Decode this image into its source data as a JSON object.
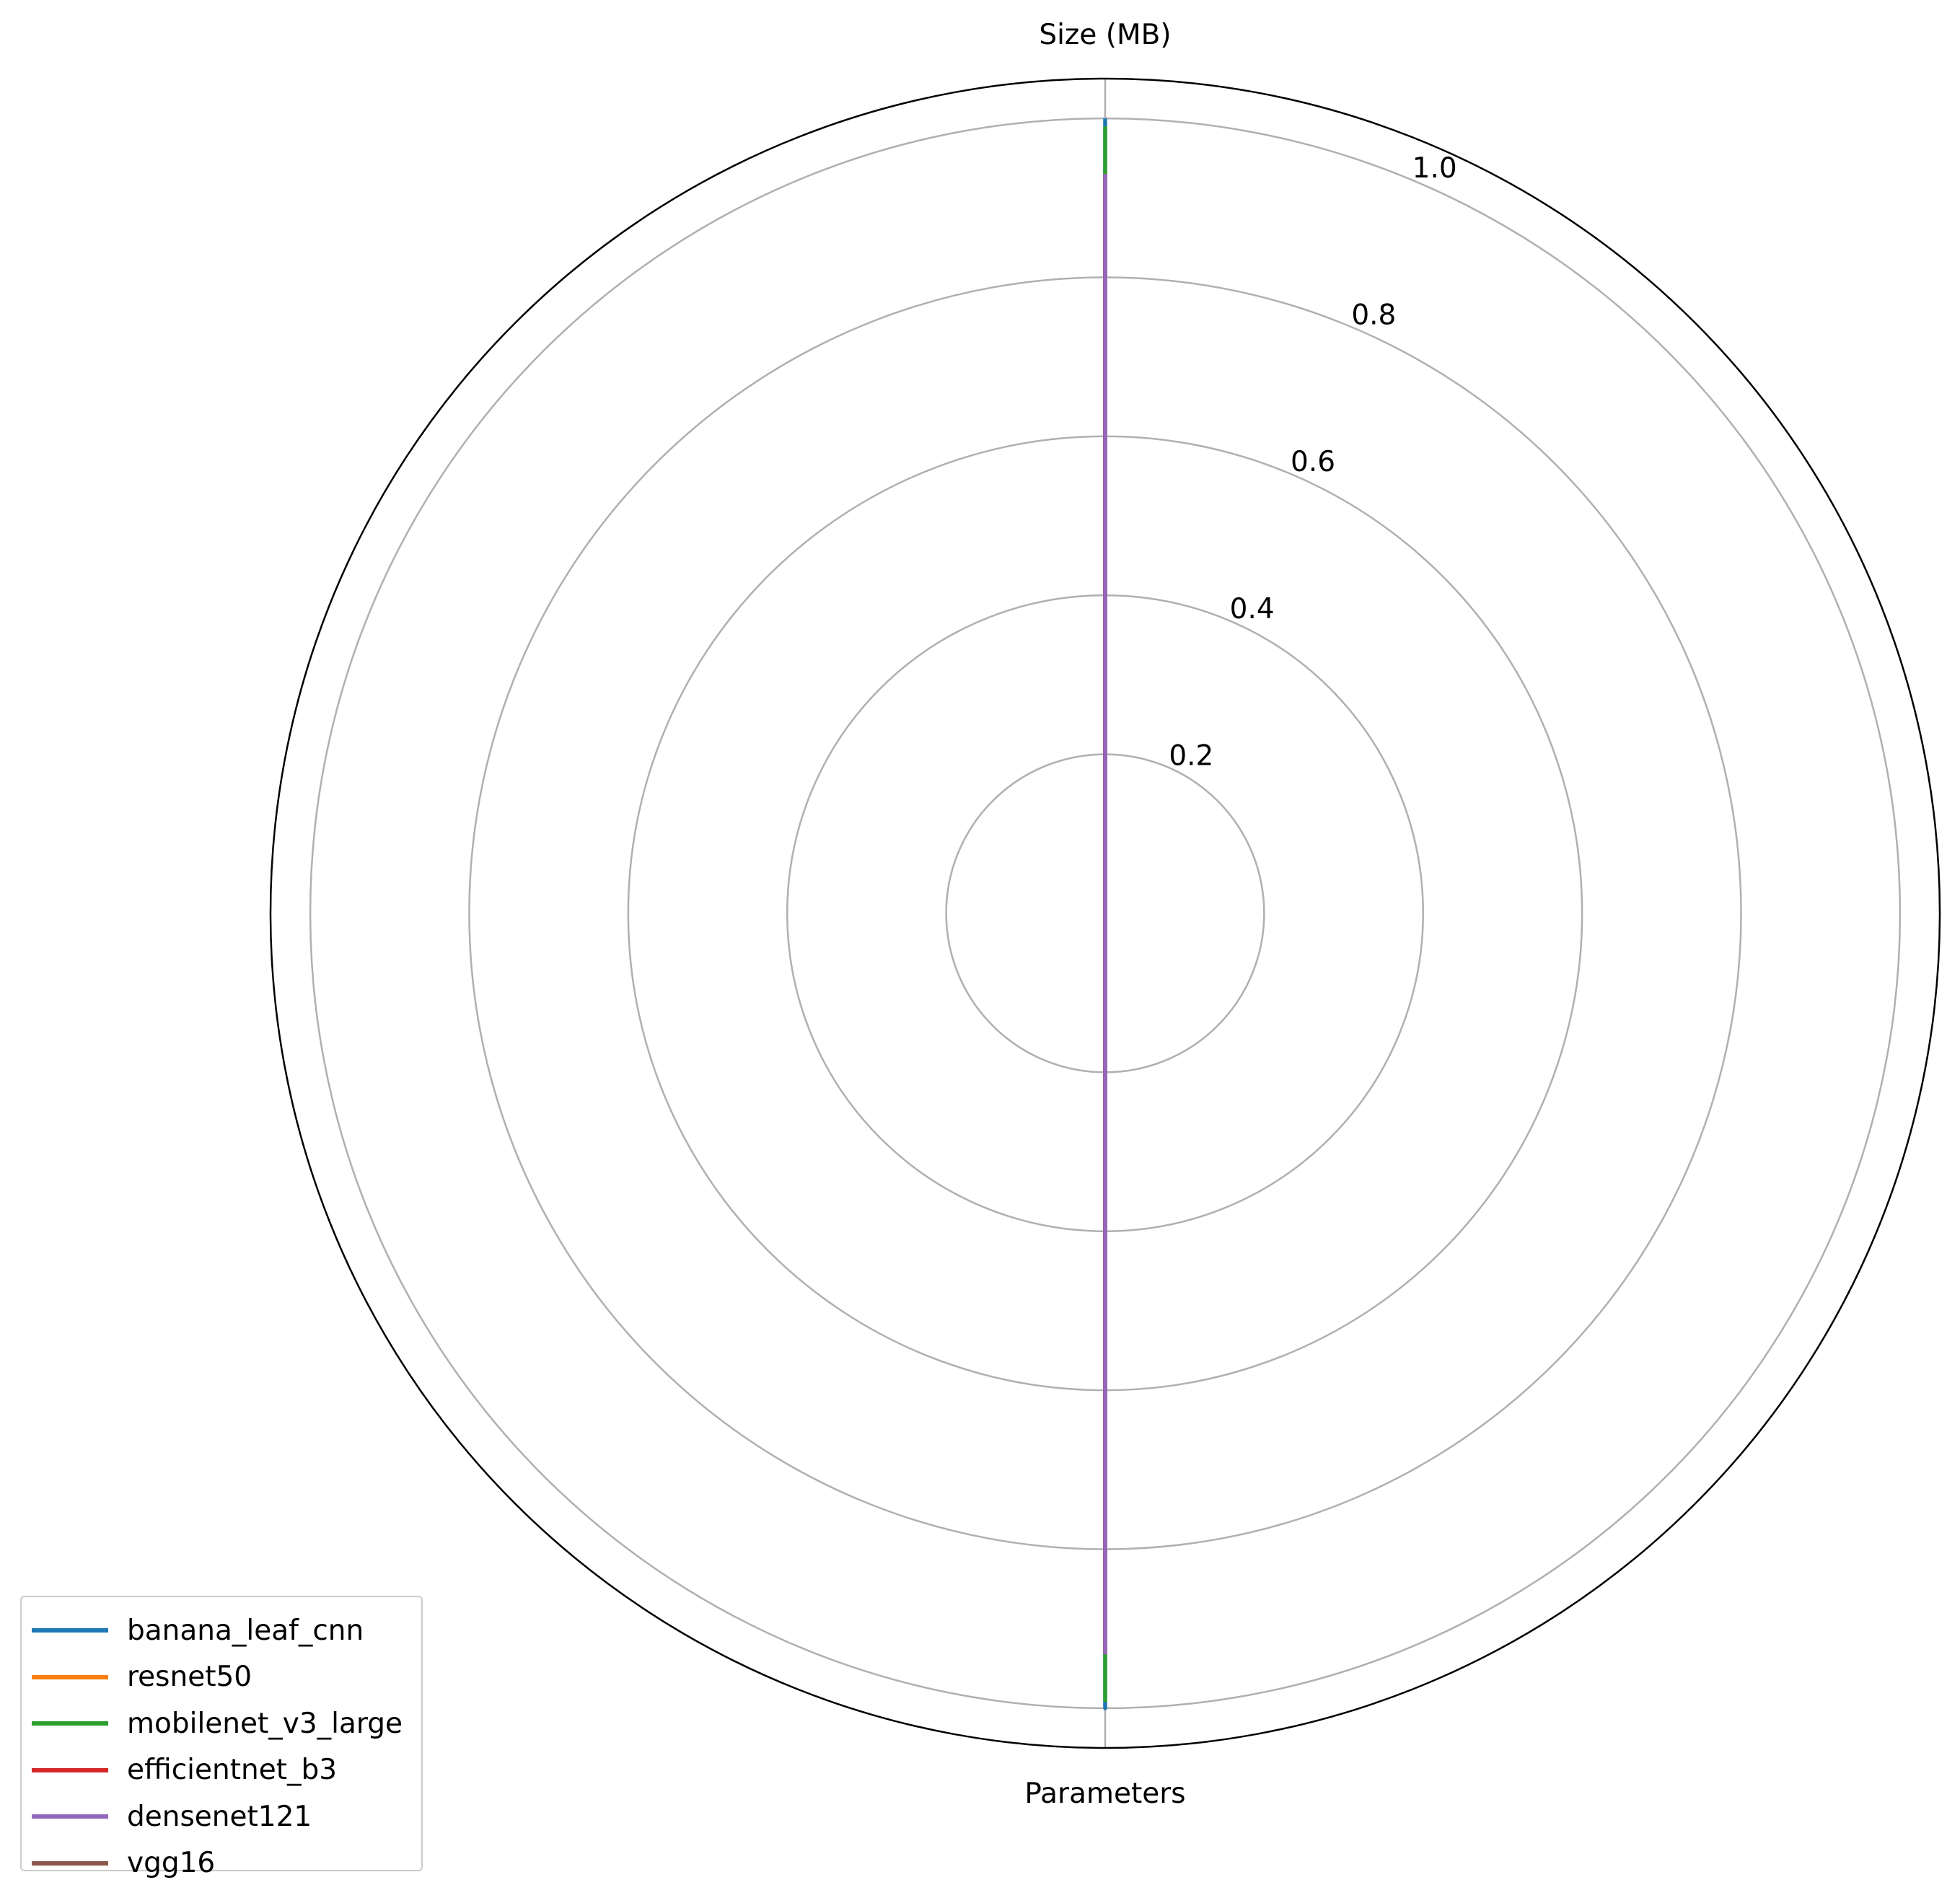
{
  "chart_data": {
    "type": "radar",
    "axes": [
      "Size (MB)",
      "Parameters"
    ],
    "radial_ticks": [
      "0.2",
      "0.4",
      "0.6",
      "0.8",
      "1.0"
    ],
    "rlim": [
      0,
      1.05
    ],
    "grid": true,
    "legend_placement": "lower-left",
    "series": [
      {
        "name": "banana_leaf_cnn",
        "color": "#1f77b4",
        "values": [
          1.0,
          1.0
        ]
      },
      {
        "name": "resnet50",
        "color": "#ff7f0e",
        "values": [
          0.92,
          0.92
        ]
      },
      {
        "name": "mobilenet_v3_large",
        "color": "#2ca02c",
        "values": [
          0.99,
          0.99
        ]
      },
      {
        "name": "efficientnet_b3",
        "color": "#d62728",
        "values": [
          0.93,
          0.93
        ]
      },
      {
        "name": "densenet121",
        "color": "#9467bd",
        "values": [
          0.93,
          0.93
        ]
      },
      {
        "name": "vgg16",
        "color": "#8c564b",
        "values": [
          0.0,
          0.0
        ]
      }
    ]
  }
}
